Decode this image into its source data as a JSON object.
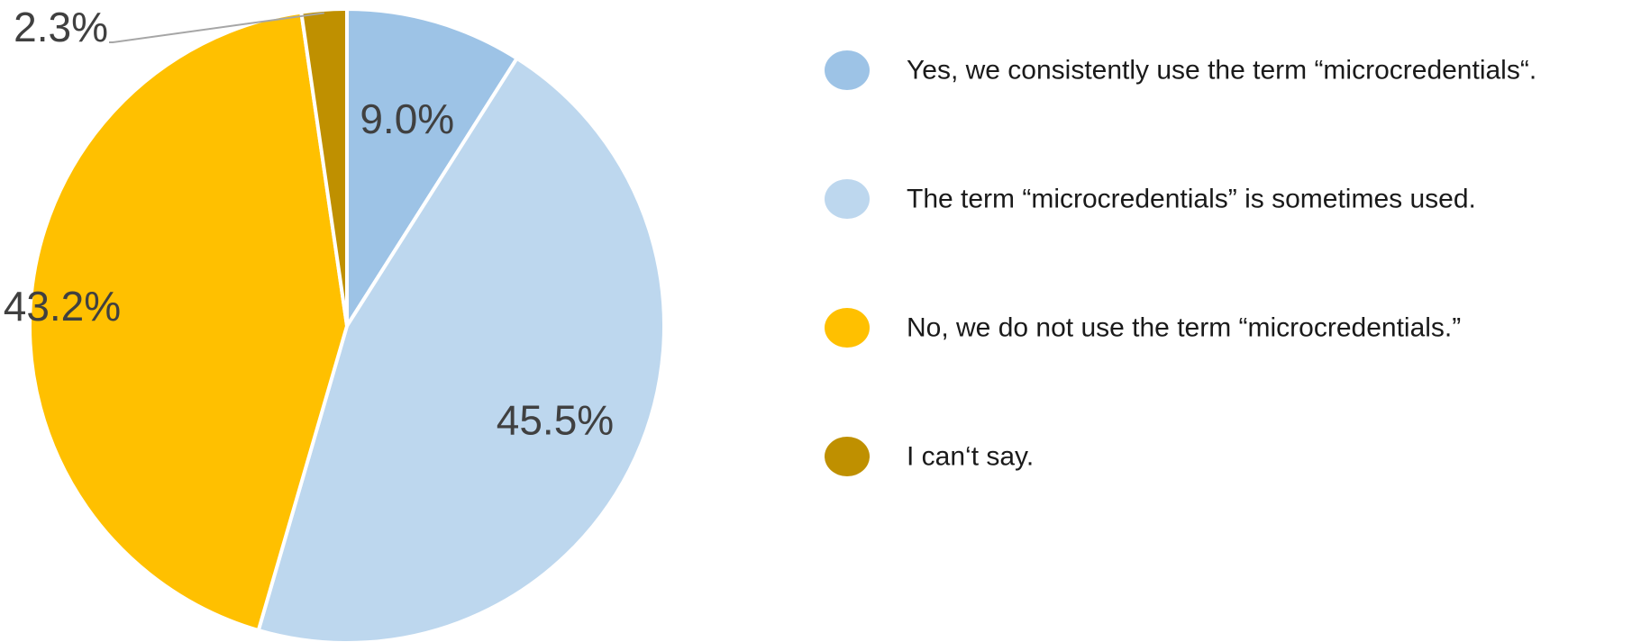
{
  "chart_data": {
    "type": "pie",
    "categories": [
      "Yes, we consistently use the term “microcredentials“.",
      "The term “microcredentials” is sometimes used.",
      "No, we do not use the term “microcredentials.”",
      "I can‘t say."
    ],
    "values": [
      9.0,
      45.5,
      43.2,
      2.3
    ],
    "value_labels": [
      "9.0%",
      "45.5%",
      "43.2%",
      "2.3%"
    ],
    "colors": [
      "#9DC3E6",
      "#BDD7EE",
      "#FFC000",
      "#BF9000"
    ],
    "legend_position": "right",
    "start_angle": "12 o'clock",
    "direction": "clockwise"
  }
}
